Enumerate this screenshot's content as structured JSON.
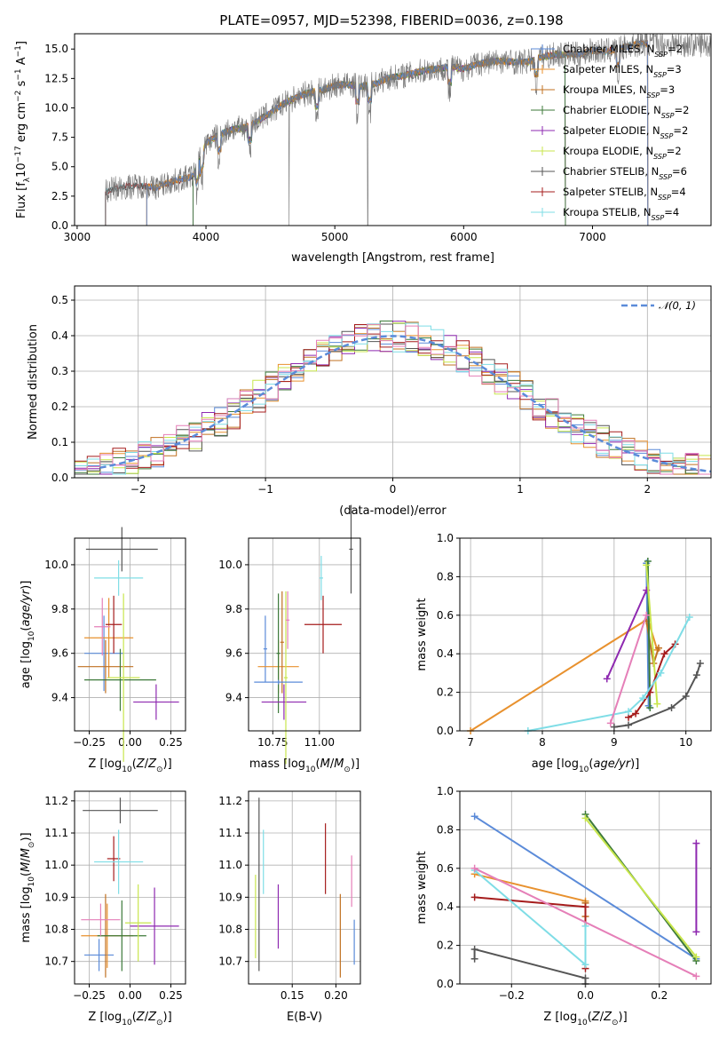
{
  "figure_title": "PLATE=0957, MJD=52398, FIBERID=0036, z=0.198",
  "colors": {
    "Chabrier MILES": "#5b8bd9",
    "Salpeter MILES": "#e8912e",
    "Kroupa MILES": "#c07020",
    "Chabrier ELODIE": "#3d7a3a",
    "Salpeter ELODIE": "#8e29b0",
    "Kroupa ELODIE": "#c8e64c",
    "Chabrier STELIB": "#555555",
    "Salpeter STELIB": "#a51c1c",
    "Kroupa STELIB": "#7fdde6",
    "Pink": "#e57fb8",
    "Normal": "#5b8bd9"
  },
  "chart_data": [
    {
      "id": "spectrum",
      "type": "line",
      "title": "PLATE=0957, MJD=52398, FIBERID=0036, z=0.198",
      "xlabel": "wavelength [Angstrom, rest frame]",
      "ylabel": "Flux [f_λ10^-17 erg cm^-2 s^-1 A^-1]",
      "xlim": [
        2980,
        7920
      ],
      "ylim": [
        0,
        16.3
      ],
      "xticks": [
        3000,
        4000,
        5000,
        6000,
        7000
      ],
      "yticks": [
        0.0,
        2.5,
        5.0,
        7.5,
        10.0,
        12.5,
        15.0
      ],
      "legend": "upper right",
      "legend_entries": [
        {
          "label": "Chabrier MILES, N",
          "sub": "SSP",
          "val": "=2"
        },
        {
          "label": "Salpeter MILES, N",
          "sub": "SSP",
          "val": "=3"
        },
        {
          "label": "Kroupa MILES, N",
          "sub": "SSP",
          "val": "=3"
        },
        {
          "label": "Chabrier ELODIE, N",
          "sub": "SSP",
          "val": "=2"
        },
        {
          "label": "Salpeter ELODIE, N",
          "sub": "SSP",
          "val": "=2"
        },
        {
          "label": "Kroupa ELODIE, N",
          "sub": "SSP",
          "val": "=2"
        },
        {
          "label": "Chabrier STELIB, N",
          "sub": "SSP",
          "val": "=6"
        },
        {
          "label": "Salpeter STELIB, N",
          "sub": "SSP",
          "val": "=4"
        },
        {
          "label": "Kroupa STELIB, N",
          "sub": "SSP",
          "val": "=4"
        }
      ],
      "continuum": [
        [
          3220,
          2.9
        ],
        [
          3300,
          3.2
        ],
        [
          3400,
          3.3
        ],
        [
          3500,
          3.4
        ],
        [
          3600,
          3.2
        ],
        [
          3700,
          3.6
        ],
        [
          3800,
          3.9
        ],
        [
          3900,
          4.2
        ],
        [
          4000,
          7.0
        ],
        [
          4100,
          7.7
        ],
        [
          4200,
          8.2
        ],
        [
          4300,
          8.3
        ],
        [
          4400,
          8.9
        ],
        [
          4500,
          9.6
        ],
        [
          4600,
          10.3
        ],
        [
          4700,
          10.9
        ],
        [
          4800,
          11.3
        ],
        [
          4900,
          11.5
        ],
        [
          5000,
          11.9
        ],
        [
          5100,
          12.0
        ],
        [
          5200,
          11.8
        ],
        [
          5300,
          12.0
        ],
        [
          5400,
          12.5
        ],
        [
          5500,
          12.7
        ],
        [
          5600,
          12.9
        ],
        [
          5700,
          13.2
        ],
        [
          5800,
          13.3
        ],
        [
          5900,
          13.5
        ],
        [
          6000,
          13.3
        ],
        [
          6100,
          13.7
        ],
        [
          6200,
          13.9
        ],
        [
          6300,
          14.0
        ],
        [
          6400,
          13.9
        ],
        [
          6500,
          13.9
        ],
        [
          6600,
          14.3
        ],
        [
          6700,
          14.5
        ],
        [
          6800,
          14.6
        ],
        [
          6900,
          14.5
        ],
        [
          7000,
          14.9
        ],
        [
          7100,
          14.8
        ],
        [
          7200,
          15.0
        ],
        [
          7300,
          15.3
        ],
        [
          7400,
          15.5
        ],
        [
          7500,
          15.4
        ]
      ],
      "series_ranges": [
        {
          "name": "Chabrier MILES",
          "x": [
            3540,
            7430
          ]
        },
        {
          "name": "Salpeter MILES",
          "x": [
            3540,
            7430
          ]
        },
        {
          "name": "Kroupa MILES",
          "x": [
            3540,
            7430
          ]
        },
        {
          "name": "Chabrier ELODIE",
          "x": [
            3900,
            6790
          ]
        },
        {
          "name": "Salpeter ELODIE",
          "x": [
            3900,
            6790
          ]
        },
        {
          "name": "Kroupa ELODIE",
          "x": [
            3900,
            6790
          ]
        },
        {
          "name": "Chabrier STELIB",
          "x": [
            3220,
            7430
          ]
        },
        {
          "name": "Salpeter STELIB",
          "x": [
            3220,
            7430
          ]
        },
        {
          "name": "Kroupa STELIB",
          "x": [
            3220,
            7430
          ]
        }
      ]
    },
    {
      "id": "residuals",
      "type": "line",
      "xlabel": "(data-model)/error",
      "ylabel": "Normed distribution",
      "xlim": [
        -2.5,
        2.5
      ],
      "ylim": [
        0,
        0.54
      ],
      "xticks": [
        -2,
        -1,
        0,
        1,
        2
      ],
      "yticks": [
        0.0,
        0.1,
        0.2,
        0.3,
        0.4,
        0.5
      ],
      "grid": true,
      "legend": "upper right",
      "normal_label": "N(0,1)",
      "bin_width": 0.1,
      "hist_series": [
        "Chabrier MILES",
        "Salpeter MILES",
        "Kroupa MILES",
        "Chabrier ELODIE",
        "Salpeter ELODIE",
        "Kroupa ELODIE",
        "Chabrier STELIB",
        "Salpeter STELIB",
        "Kroupa STELIB",
        "Pink"
      ]
    },
    {
      "id": "age_vs_Z",
      "type": "scatter",
      "xlabel": "Z [log10(Z/Z⊙)]",
      "ylabel": "age  [log10(age/yr)]",
      "xlim": [
        -0.34,
        0.34
      ],
      "ylim": [
        9.25,
        10.12
      ],
      "xticks": [
        -0.25,
        0.0,
        0.25
      ],
      "yticks": [
        9.4,
        9.6,
        9.8,
        10.0
      ],
      "grid": true,
      "points": [
        {
          "s": "Chabrier MILES",
          "x": -0.16,
          "xe": 0.12,
          "y": 9.6,
          "ye": 0.17
        },
        {
          "s": "Salpeter MILES",
          "x": -0.13,
          "xe": 0.15,
          "y": 9.67,
          "ye": 0.18
        },
        {
          "s": "Kroupa MILES",
          "x": -0.15,
          "xe": 0.17,
          "y": 9.54,
          "ye": 0.12
        },
        {
          "s": "Chabrier ELODIE",
          "x": -0.06,
          "xe": 0.22,
          "y": 9.48,
          "ye": 0.14
        },
        {
          "s": "Salpeter ELODIE",
          "x": 0.16,
          "xe": 0.14,
          "y": 9.38,
          "ye": 0.08
        },
        {
          "s": "Kroupa ELODIE",
          "x": -0.04,
          "xe": 0.1,
          "y": 9.49,
          "ye": 0.38
        },
        {
          "s": "Chabrier STELIB",
          "x": -0.05,
          "xe": 0.22,
          "y": 10.07,
          "ye": 0.1
        },
        {
          "s": "Salpeter STELIB",
          "x": -0.1,
          "xe": 0.05,
          "y": 9.73,
          "ye": 0.13
        },
        {
          "s": "Kroupa STELIB",
          "x": -0.07,
          "xe": 0.15,
          "y": 9.94,
          "ye": 0.08
        },
        {
          "s": "Pink",
          "x": -0.17,
          "xe": 0.05,
          "y": 9.72,
          "ye": 0.13
        }
      ]
    },
    {
      "id": "age_vs_mass",
      "type": "scatter",
      "xlabel": "mass [log10(M/M⊙)]",
      "xlim": [
        10.62,
        11.22
      ],
      "ylim": [
        9.25,
        10.12
      ],
      "xticks": [
        10.75,
        11.0
      ],
      "yticks": [
        9.4,
        9.6,
        9.8,
        10.0
      ],
      "grid": true,
      "points": [
        {
          "s": "Chabrier MILES",
          "x": 10.71,
          "xe": 0.01,
          "y": 9.62,
          "ye": 0.15
        },
        {
          "s": "Salpeter MILES",
          "x": 10.78,
          "xe": 0.11,
          "y": 9.54,
          "ye": 0.12
        },
        {
          "s": "Kroupa MILES",
          "x": 10.8,
          "xe": 0.01,
          "y": 9.65,
          "ye": 0.23
        },
        {
          "s": "Chabrier ELODIE",
          "x": 10.78,
          "xe": 0.01,
          "y": 9.6,
          "ye": 0.27
        },
        {
          "s": "Salpeter ELODIE",
          "x": 10.81,
          "xe": 0.12,
          "y": 9.38,
          "ye": 0.08
        },
        {
          "s": "Kroupa ELODIE",
          "x": 10.82,
          "xe": 0.01,
          "y": 9.49,
          "ye": 0.39
        },
        {
          "s": "Chabrier STELIB",
          "x": 11.17,
          "xe": 0.01,
          "y": 10.07,
          "ye": 0.2
        },
        {
          "s": "Salpeter STELIB",
          "x": 11.02,
          "xe": 0.1,
          "y": 9.73,
          "ye": 0.13
        },
        {
          "s": "Kroupa STELIB",
          "x": 11.01,
          "xe": 0.01,
          "y": 9.94,
          "ye": 0.1
        },
        {
          "s": "Pink",
          "x": 10.83,
          "xe": 0.01,
          "y": 9.75,
          "ye": 0.13
        },
        {
          "s": "Normal",
          "x": 10.78,
          "xe": 0.13,
          "y": 9.47,
          "ye": 0.01
        }
      ]
    },
    {
      "id": "mass_weight_vs_age",
      "type": "line",
      "xlabel": "age  [log10(age/yr)]",
      "ylabel": "mass weight",
      "xlim": [
        6.85,
        10.35
      ],
      "ylim": [
        0,
        1.0
      ],
      "xticks": [
        7,
        8,
        9,
        10
      ],
      "yticks": [
        0.0,
        0.2,
        0.4,
        0.6,
        0.8,
        1.0
      ],
      "grid": true,
      "series": [
        {
          "name": "Salpeter MILES",
          "x": [
            7.0,
            9.47,
            9.6
          ],
          "y": [
            0.0,
            0.58,
            0.42
          ]
        },
        {
          "name": "Chabrier MILES",
          "x": [
            9.45,
            9.48
          ],
          "y": [
            0.87,
            0.13
          ]
        },
        {
          "name": "Kroupa MILES",
          "x": [
            9.45,
            9.55,
            9.62
          ],
          "y": [
            0.57,
            0.35,
            0.43
          ]
        },
        {
          "name": "Chabrier ELODIE",
          "x": [
            9.47,
            9.5
          ],
          "y": [
            0.88,
            0.12
          ]
        },
        {
          "name": "Salpeter ELODIE",
          "x": [
            8.9,
            9.45
          ],
          "y": [
            0.27,
            0.73
          ]
        },
        {
          "name": "Kroupa ELODIE",
          "x": [
            9.45,
            9.6
          ],
          "y": [
            0.86,
            0.14
          ]
        },
        {
          "name": "Chabrier STELIB",
          "x": [
            9.0,
            9.2,
            9.8,
            10.0,
            10.15,
            10.2
          ],
          "y": [
            0.02,
            0.03,
            0.12,
            0.18,
            0.29,
            0.35
          ]
        },
        {
          "name": "Salpeter STELIB",
          "x": [
            9.2,
            9.3,
            9.5,
            9.7,
            9.85
          ],
          "y": [
            0.07,
            0.09,
            0.2,
            0.4,
            0.45
          ]
        },
        {
          "name": "Kroupa STELIB",
          "x": [
            7.8,
            9.2,
            9.4,
            9.65,
            10.05
          ],
          "y": [
            0.0,
            0.1,
            0.17,
            0.3,
            0.59
          ]
        },
        {
          "name": "Pink",
          "x": [
            8.95,
            9.45
          ],
          "y": [
            0.04,
            0.6
          ]
        }
      ]
    },
    {
      "id": "mass_vs_Z",
      "type": "scatter",
      "xlabel": "Z [log10(Z/Z⊙)]",
      "ylabel": "mass [log10(M/M⊙)]",
      "xlim": [
        -0.34,
        0.34
      ],
      "ylim": [
        10.63,
        11.23
      ],
      "xticks": [
        -0.25,
        0.0,
        0.25
      ],
      "yticks": [
        10.7,
        10.8,
        10.9,
        11.0,
        11.1,
        11.2
      ],
      "grid": true,
      "points": [
        {
          "s": "Chabrier MILES",
          "x": -0.19,
          "xe": 0.09,
          "y": 10.72,
          "ye": 0.05
        },
        {
          "s": "Salpeter MILES",
          "x": -0.14,
          "xe": 0.16,
          "y": 10.78,
          "ye": 0.1
        },
        {
          "s": "Kroupa MILES",
          "x": -0.15,
          "xe": 0.01,
          "y": 10.78,
          "ye": 0.13
        },
        {
          "s": "Chabrier ELODIE",
          "x": -0.05,
          "xe": 0.15,
          "y": 10.78,
          "ye": 0.11
        },
        {
          "s": "Salpeter ELODIE",
          "x": 0.15,
          "xe": 0.15,
          "y": 10.81,
          "ye": 0.12
        },
        {
          "s": "Kroupa ELODIE",
          "x": 0.05,
          "xe": 0.08,
          "y": 10.82,
          "ye": 0.12
        },
        {
          "s": "Chabrier STELIB",
          "x": -0.06,
          "xe": 0.23,
          "y": 11.17,
          "ye": 0.04
        },
        {
          "s": "Salpeter STELIB",
          "x": -0.1,
          "xe": 0.04,
          "y": 11.02,
          "ye": 0.07
        },
        {
          "s": "Kroupa STELIB",
          "x": -0.07,
          "xe": 0.15,
          "y": 11.01,
          "ye": 0.1
        },
        {
          "s": "Pink",
          "x": -0.18,
          "xe": 0.12,
          "y": 10.83,
          "ye": 0.05
        }
      ]
    },
    {
      "id": "mass_vs_EBV",
      "type": "scatter",
      "xlabel": "E(B-V)",
      "xlim": [
        0.1,
        0.228
      ],
      "ylim": [
        10.63,
        11.23
      ],
      "xticks": [
        0.15,
        0.2
      ],
      "yticks": [
        10.7,
        10.8,
        10.9,
        11.0,
        11.1,
        11.2
      ],
      "grid": true,
      "points": [
        {
          "s": "Chabrier STELIB",
          "y": 10.94,
          "ye": 0.27,
          "x": 0.112
        },
        {
          "s": "Kroupa ELODIE",
          "y": 10.84,
          "ye": 0.13,
          "x": 0.108
        },
        {
          "s": "Kroupa STELIB",
          "y": 11.01,
          "ye": 0.1,
          "x": 0.117
        },
        {
          "s": "Salpeter ELODIE",
          "y": 10.84,
          "ye": 0.1,
          "x": 0.134
        },
        {
          "s": "Salpeter STELIB",
          "y": 11.02,
          "ye": 0.11,
          "x": 0.188
        },
        {
          "s": "Kroupa MILES",
          "y": 10.78,
          "ye": 0.13,
          "x": 0.205
        },
        {
          "s": "Pink",
          "y": 10.95,
          "ye": 0.08,
          "x": 0.218
        },
        {
          "s": "Chabrier MILES",
          "y": 10.76,
          "ye": 0.07,
          "x": 0.221
        }
      ]
    },
    {
      "id": "mass_weight_vs_Z",
      "type": "line",
      "xlabel": "Z [log10(Z/Z⊙)]",
      "ylabel": "mass weight",
      "xlim": [
        -0.34,
        0.34
      ],
      "ylim": [
        0,
        1.0
      ],
      "xticks": [
        -0.2,
        0.0,
        0.2
      ],
      "yticks": [
        0.0,
        0.2,
        0.4,
        0.6,
        0.8,
        1.0
      ],
      "grid": true,
      "series": [
        {
          "name": "Chabrier MILES",
          "x": [
            -0.3,
            0.3
          ],
          "y": [
            0.87,
            0.13
          ]
        },
        {
          "name": "Salpeter MILES",
          "x": [
            -0.3,
            0.0
          ],
          "y": [
            0.57,
            0.43
          ]
        },
        {
          "name": "Kroupa MILES",
          "x": [
            0.0,
            0.0
          ],
          "y": [
            0.42,
            0.35
          ]
        },
        {
          "name": "Chabrier ELODIE",
          "x": [
            0.0,
            0.3
          ],
          "y": [
            0.88,
            0.12
          ]
        },
        {
          "name": "Salpeter ELODIE",
          "x": [
            0.3,
            0.3
          ],
          "y": [
            0.73,
            0.27
          ]
        },
        {
          "name": "Kroupa ELODIE",
          "x": [
            0.0,
            0.3
          ],
          "y": [
            0.86,
            0.14
          ]
        },
        {
          "name": "Chabrier STELIB",
          "x": [
            -0.3,
            -0.3,
            0.0,
            0.0
          ],
          "y": [
            0.13,
            0.18,
            0.03,
            0.0
          ]
        },
        {
          "name": "Salpeter STELIB",
          "x": [
            -0.3,
            0.0,
            0.0
          ],
          "y": [
            0.45,
            0.4,
            0.08
          ]
        },
        {
          "name": "Kroupa STELIB",
          "x": [
            -0.3,
            0.0,
            0.0
          ],
          "y": [
            0.59,
            0.1,
            0.3
          ]
        },
        {
          "name": "Pink",
          "x": [
            -0.3,
            0.3
          ],
          "y": [
            0.6,
            0.04
          ]
        }
      ]
    }
  ]
}
